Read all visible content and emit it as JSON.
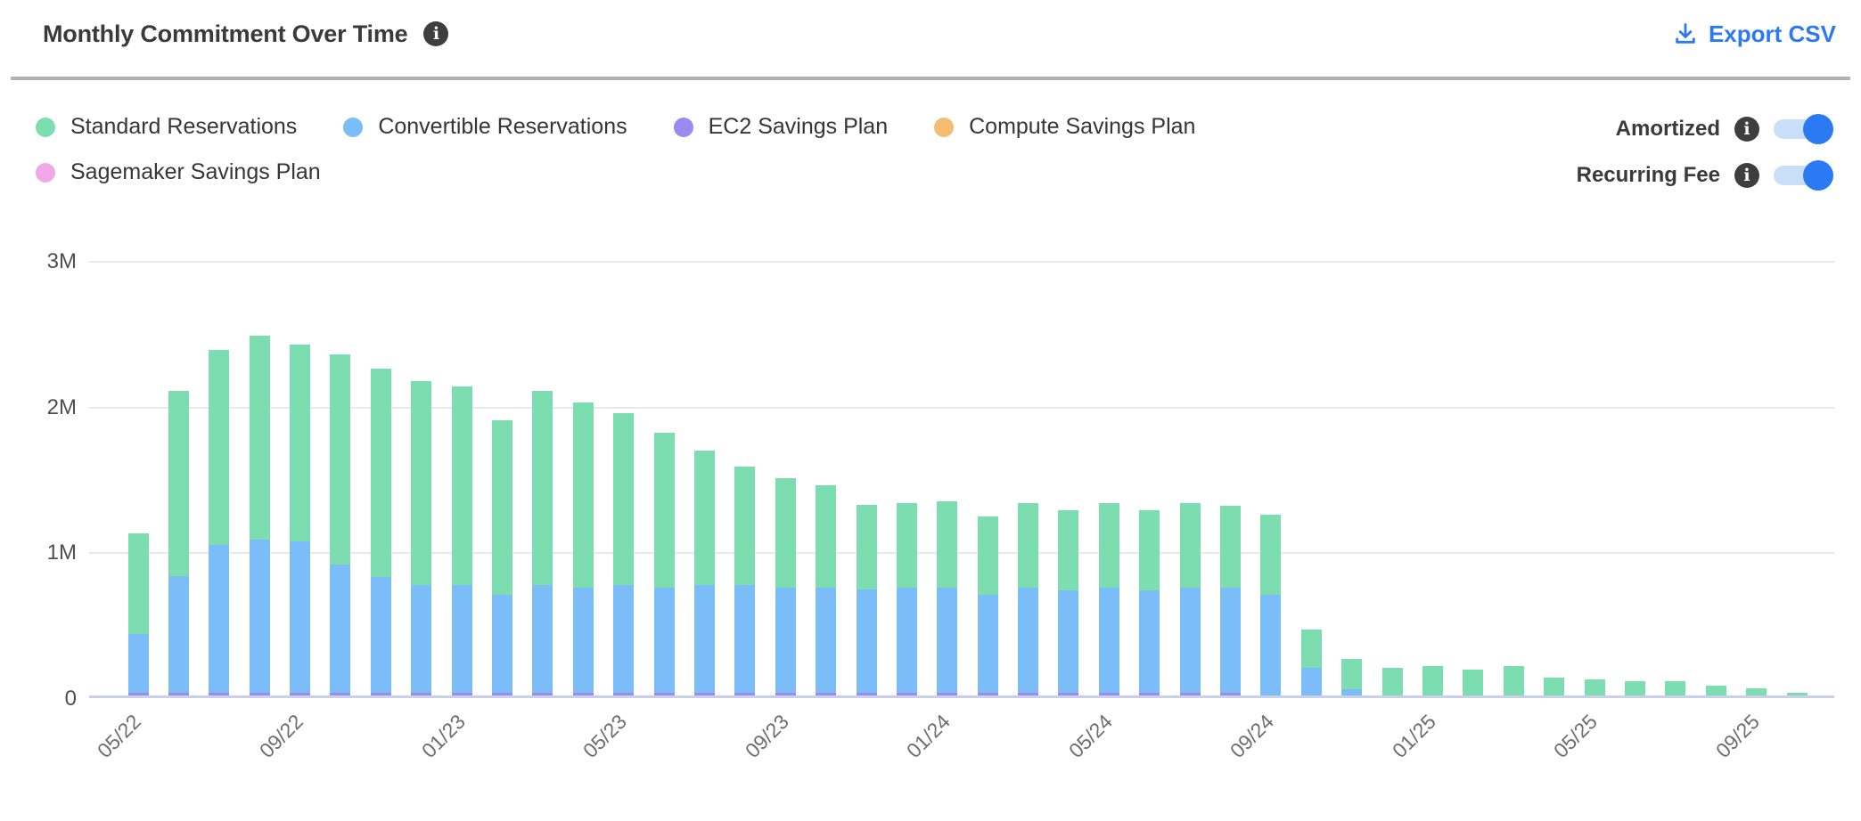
{
  "header": {
    "title": "Monthly Commitment Over Time",
    "title_info_icon": "info-icon",
    "export_label": "Export CSV"
  },
  "legend": {
    "items": [
      {
        "label": "Standard Reservations",
        "color": "#7bddb0"
      },
      {
        "label": "Convertible Reservations",
        "color": "#7bbdf8"
      },
      {
        "label": "EC2 Savings Plan",
        "color": "#9c8bef"
      },
      {
        "label": "Compute Savings Plan",
        "color": "#f4bd72"
      },
      {
        "label": "Sagemaker Savings Plan",
        "color": "#f0a9e6"
      }
    ]
  },
  "controls": [
    {
      "label": "Amortized",
      "enabled": true
    },
    {
      "label": "Recurring Fee",
      "enabled": true
    }
  ],
  "chart_data": {
    "type": "bar",
    "stacked": true,
    "title": "Monthly Commitment Over Time",
    "y_unit": "millions",
    "ylim_millions": [
      0,
      3
    ],
    "y_tick_labels": [
      "3M",
      "2M",
      "1M",
      "0"
    ],
    "grid": "horizontal",
    "legend_position": "top-left",
    "x": [
      "05/22",
      "06/22",
      "07/22",
      "08/22",
      "09/22",
      "10/22",
      "11/22",
      "12/22",
      "01/23",
      "02/23",
      "03/23",
      "04/23",
      "05/23",
      "06/23",
      "07/23",
      "08/23",
      "09/23",
      "10/23",
      "11/23",
      "12/23",
      "01/24",
      "02/24",
      "03/24",
      "04/24",
      "05/24",
      "06/24",
      "07/24",
      "08/24",
      "09/24",
      "10/24",
      "11/24",
      "12/24",
      "01/25",
      "02/25",
      "03/25",
      "04/25",
      "05/25",
      "06/25",
      "07/25",
      "08/25",
      "09/25",
      "10/25"
    ],
    "x_tick_every": 4,
    "x_tick_labels": [
      "05/22",
      "09/22",
      "01/23",
      "05/23",
      "09/23",
      "01/24",
      "05/24",
      "09/24",
      "01/25",
      "05/25",
      "09/25"
    ],
    "series": [
      {
        "name": "EC2 Savings Plan",
        "color": "#9c8bef",
        "values": [
          0.02,
          0.02,
          0.02,
          0.02,
          0.02,
          0.02,
          0.02,
          0.02,
          0.02,
          0.02,
          0.02,
          0.02,
          0.02,
          0.02,
          0.02,
          0.02,
          0.02,
          0.02,
          0.02,
          0.02,
          0.02,
          0.02,
          0.02,
          0.02,
          0.02,
          0.02,
          0.02,
          0.02,
          0,
          0,
          0,
          0,
          0,
          0,
          0,
          0,
          0,
          0,
          0,
          0,
          0,
          0
        ]
      },
      {
        "name": "Convertible Reservations",
        "color": "#7bbdf8",
        "values": [
          0.4,
          0.8,
          1.01,
          1.05,
          1.04,
          0.88,
          0.79,
          0.74,
          0.74,
          0.67,
          0.74,
          0.72,
          0.74,
          0.72,
          0.74,
          0.74,
          0.72,
          0.72,
          0.71,
          0.72,
          0.72,
          0.67,
          0.72,
          0.7,
          0.72,
          0.7,
          0.72,
          0.72,
          0.69,
          0.19,
          0.04,
          0,
          0,
          0,
          0,
          0,
          0,
          0,
          0,
          0,
          0,
          0
        ]
      },
      {
        "name": "Standard Reservations",
        "color": "#7bddb0",
        "values": [
          0.69,
          1.27,
          1.34,
          1.4,
          1.35,
          1.44,
          1.43,
          1.4,
          1.36,
          1.2,
          1.33,
          1.27,
          1.18,
          1.06,
          0.92,
          0.81,
          0.75,
          0.7,
          0.58,
          0.58,
          0.59,
          0.54,
          0.58,
          0.55,
          0.58,
          0.55,
          0.58,
          0.56,
          0.55,
          0.26,
          0.21,
          0.19,
          0.2,
          0.18,
          0.2,
          0.12,
          0.11,
          0.1,
          0.1,
          0.07,
          0.05,
          0.02
        ]
      },
      {
        "name": "Compute Savings Plan",
        "color": "#f4bd72",
        "values": [
          0,
          0,
          0,
          0,
          0,
          0,
          0,
          0,
          0,
          0,
          0,
          0,
          0,
          0,
          0,
          0,
          0,
          0,
          0,
          0,
          0,
          0,
          0,
          0,
          0,
          0,
          0,
          0,
          0,
          0,
          0,
          0,
          0,
          0,
          0,
          0,
          0,
          0,
          0,
          0,
          0,
          0
        ]
      },
      {
        "name": "Sagemaker Savings Plan",
        "color": "#f0a9e6",
        "values": [
          0,
          0,
          0,
          0,
          0,
          0,
          0,
          0,
          0,
          0,
          0,
          0,
          0,
          0,
          0,
          0,
          0,
          0,
          0,
          0,
          0,
          0,
          0,
          0,
          0,
          0,
          0,
          0,
          0,
          0,
          0,
          0,
          0,
          0,
          0,
          0,
          0,
          0,
          0,
          0,
          0,
          0
        ]
      }
    ]
  }
}
